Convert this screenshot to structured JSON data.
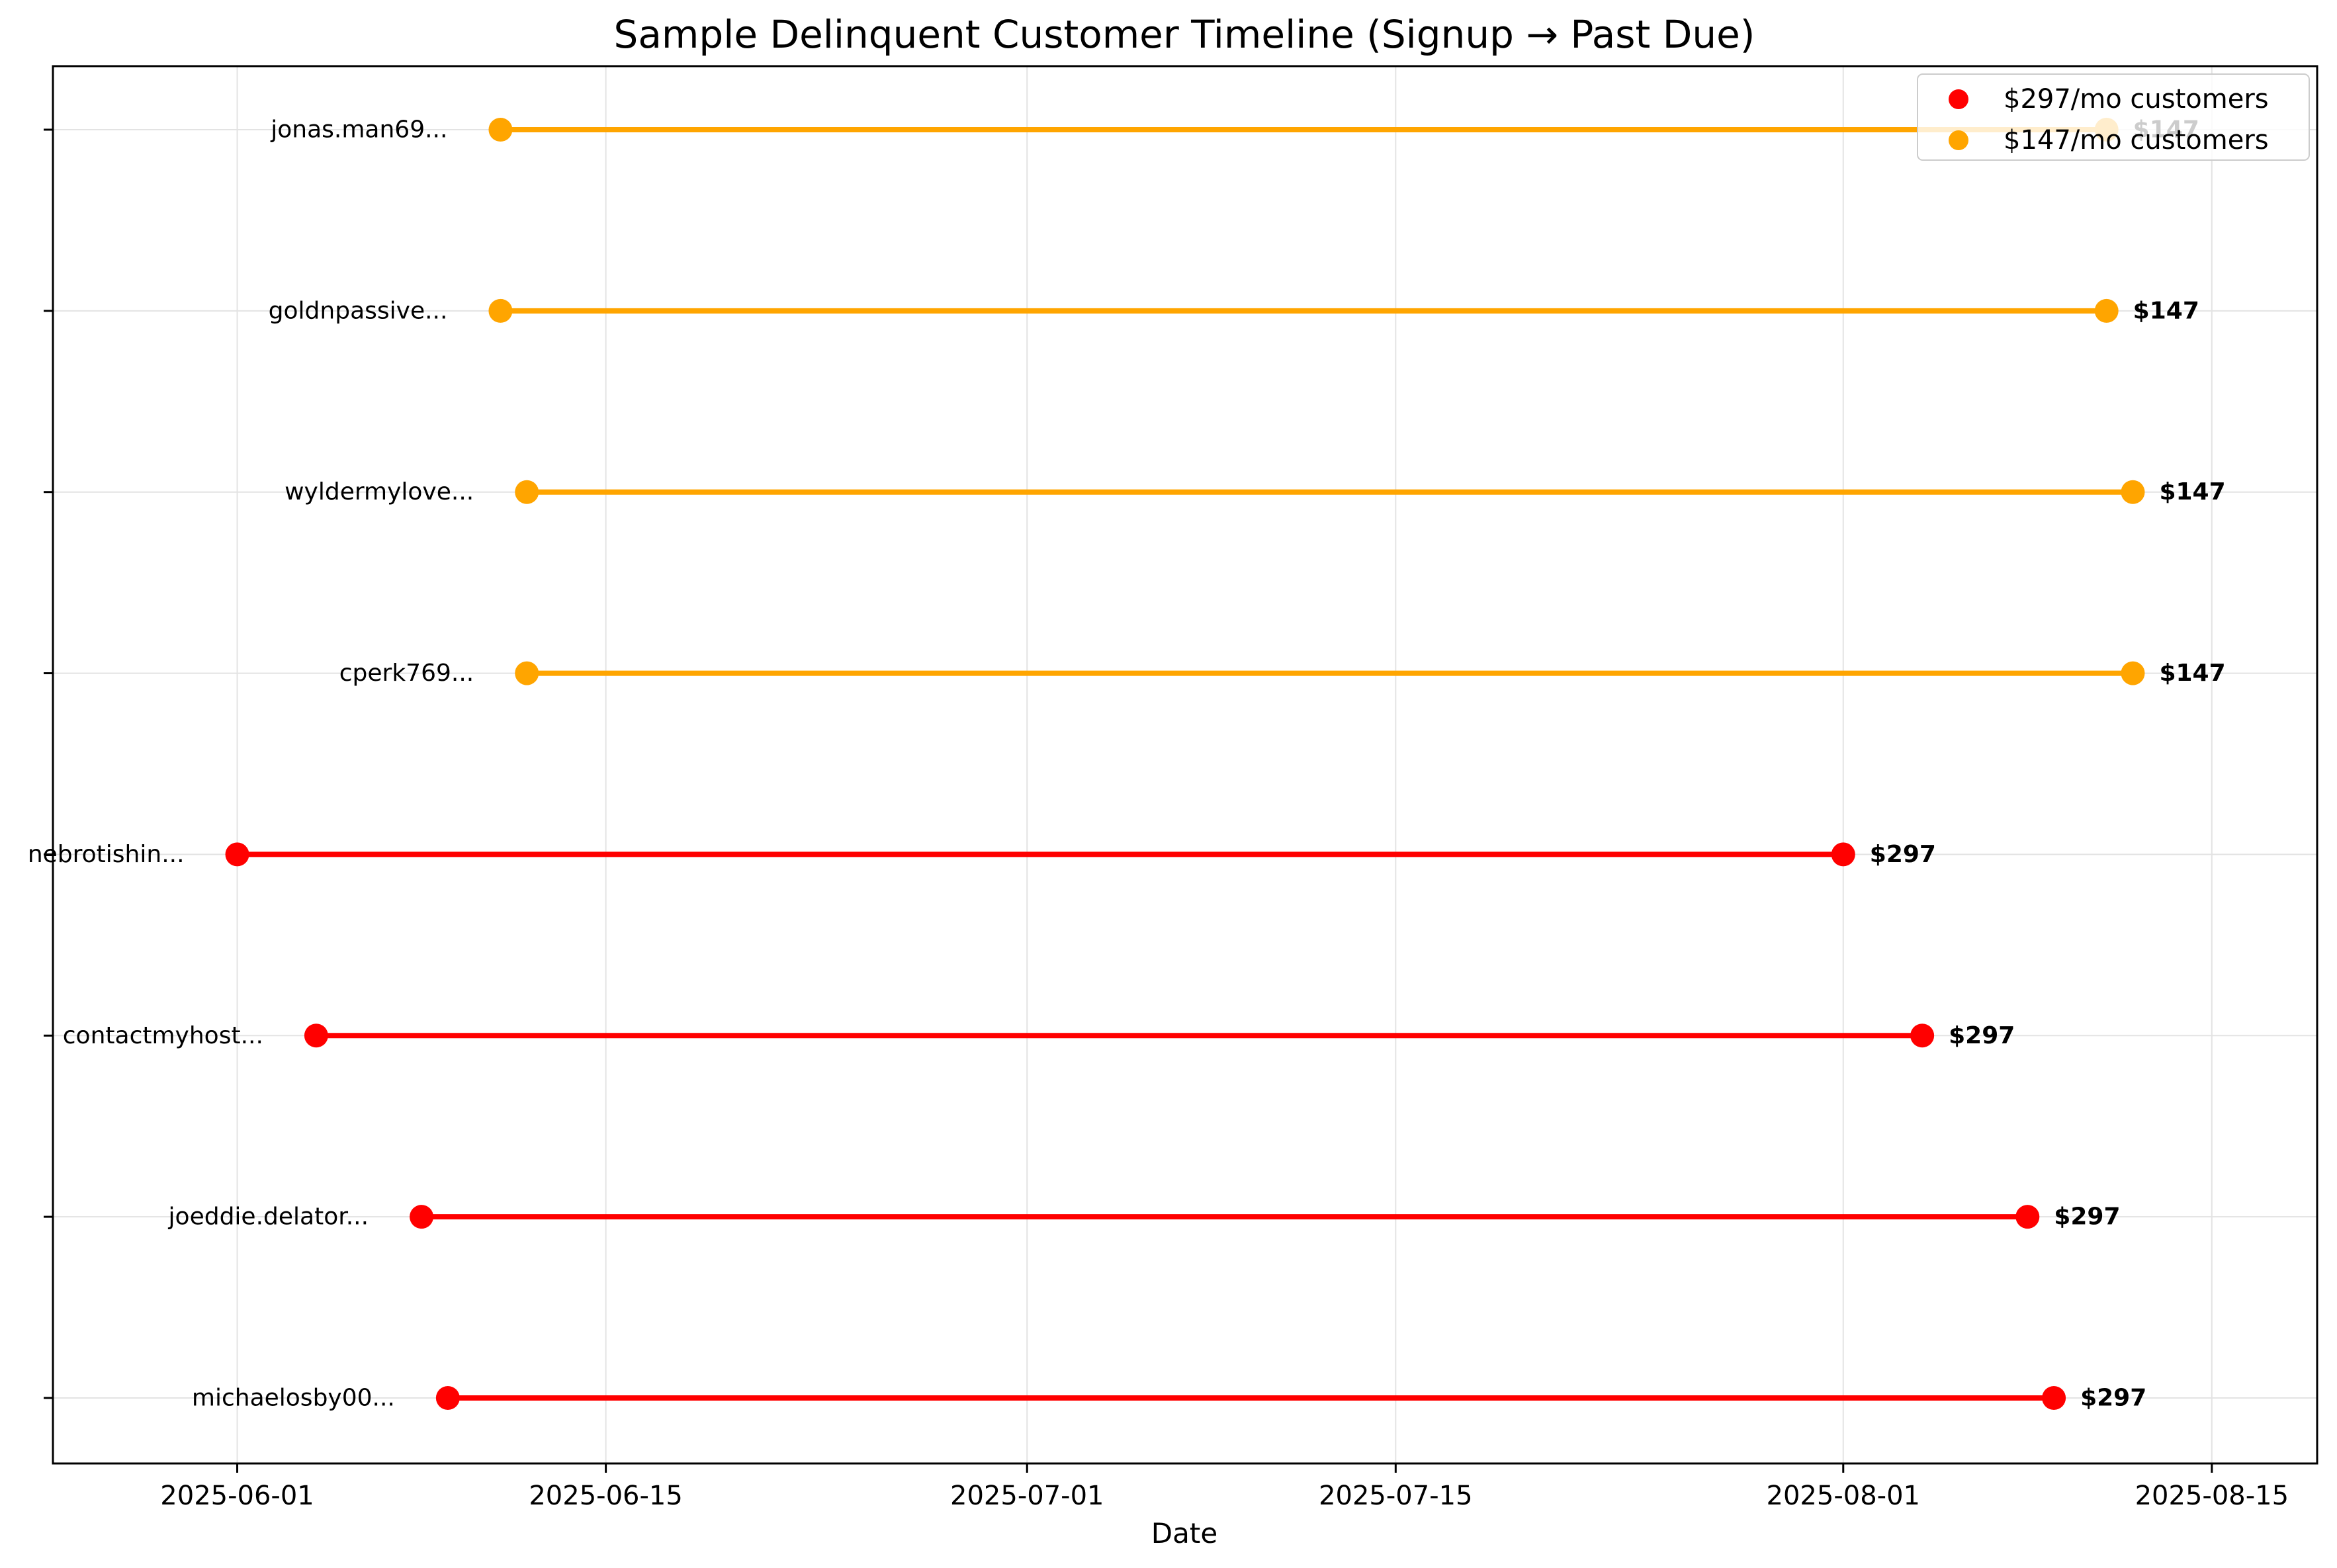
{
  "chart_data": {
    "type": "timeline",
    "title": "Sample Delinquent Customer Timeline (Signup → Past Due)",
    "xlabel": "Date",
    "ylabel": "",
    "grid": true,
    "legend_position": "top-right",
    "xlim": [
      "2025-05-25",
      "2025-08-19"
    ],
    "x_ticks": [
      "2025-06-01",
      "2025-06-15",
      "2025-07-01",
      "2025-07-15",
      "2025-08-01",
      "2025-08-15"
    ],
    "series": [
      {
        "name": "$297/mo customers",
        "color": "#ff0000",
        "amount_label": "$297",
        "rows": [
          {
            "customer": "michaelosby00...",
            "signup": "2025-06-09",
            "past_due": "2025-08-09"
          },
          {
            "customer": "joeddie.delator...",
            "signup": "2025-06-08",
            "past_due": "2025-08-08"
          },
          {
            "customer": "contactmyhost...",
            "signup": "2025-06-04",
            "past_due": "2025-08-04"
          },
          {
            "customer": "nebrotishin...",
            "signup": "2025-06-01",
            "past_due": "2025-08-01"
          }
        ]
      },
      {
        "name": "$147/mo customers",
        "color": "#ffa500",
        "amount_label": "$147",
        "rows": [
          {
            "customer": "cperk769...",
            "signup": "2025-06-12",
            "past_due": "2025-08-12"
          },
          {
            "customer": "wyldermylove...",
            "signup": "2025-06-12",
            "past_due": "2025-08-12"
          },
          {
            "customer": "goldnpassive...",
            "signup": "2025-06-11",
            "past_due": "2025-08-11"
          },
          {
            "customer": "jonas.man69...",
            "signup": "2025-06-11",
            "past_due": "2025-08-11"
          }
        ]
      }
    ]
  }
}
